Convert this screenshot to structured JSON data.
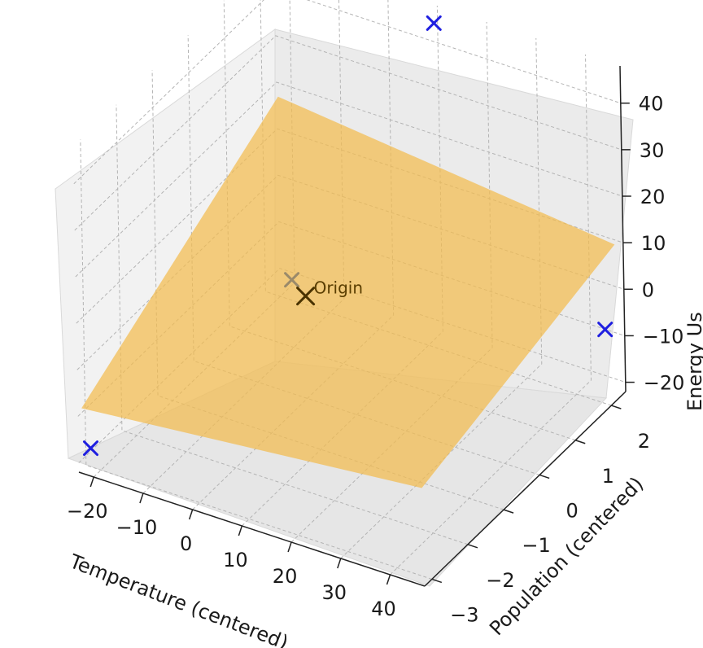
{
  "chart_data": {
    "type": "scatter",
    "subtype": "3d-scatter-with-plane",
    "xlabel": "Temperature (centered)",
    "ylabel": "Population (centered)",
    "zlabel": "Energy Us",
    "xticks": [
      "−20",
      "−10",
      "0",
      "10",
      "20",
      "30",
      "40"
    ],
    "yticks": [
      "−3",
      "−2",
      "−1",
      "0",
      "1",
      "2"
    ],
    "zticks": [
      "−20",
      "−10",
      "0",
      "10",
      "20",
      "30",
      "40"
    ],
    "xlim": [
      -23,
      47
    ],
    "ylim": [
      -3.2,
      2.4
    ],
    "zlim": [
      -22,
      48
    ],
    "grid": true,
    "series": [
      {
        "kind": "plane",
        "color": "#f2bb4e",
        "opacity": 0.72,
        "corners": [
          {
            "x": -22,
            "y": 2.3,
            "z": 18
          },
          {
            "x": -23,
            "y": -3.1,
            "z": -9
          },
          {
            "x": 46,
            "y": -3.1,
            "z": -2
          },
          {
            "x": 46,
            "y": 2.3,
            "z": 10
          }
        ]
      },
      {
        "kind": "points",
        "color": "#1f1fe0",
        "marker": "x",
        "points": [
          {
            "x": -22,
            "y": -3,
            "z": -18
          },
          {
            "x": 46,
            "y": 2,
            "z": -6
          },
          {
            "x": 10,
            "y": 2.3,
            "z": 45
          }
        ]
      },
      {
        "kind": "points",
        "color": "#4a3300",
        "marker": "x",
        "points": [
          {
            "x": 0,
            "y": 0,
            "z": 0
          }
        ]
      }
    ],
    "annotations": [
      {
        "text": "Origin",
        "x": 0,
        "y": 0,
        "z": 0
      }
    ]
  }
}
